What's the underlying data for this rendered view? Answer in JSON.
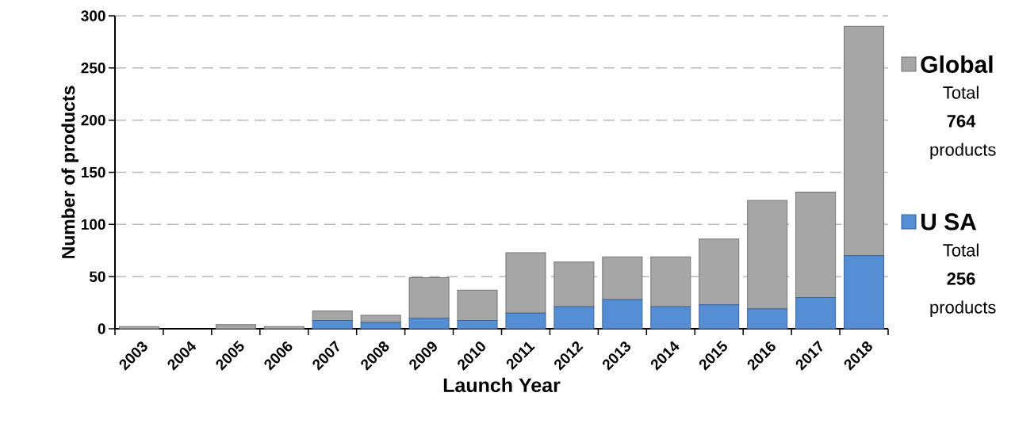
{
  "chart_data": {
    "type": "bar",
    "stacked": true,
    "xlabel": "Launch Year",
    "ylabel": "Number of products",
    "categories": [
      "2003",
      "2004",
      "2005",
      "2006",
      "2007",
      "2008",
      "2009",
      "2010",
      "2011",
      "2012",
      "2013",
      "2014",
      "2015",
      "2016",
      "2017",
      "2018"
    ],
    "series": [
      {
        "name": "U SA",
        "color": "#558ed5",
        "values": [
          0,
          0,
          0,
          0,
          8,
          6,
          10,
          8,
          15,
          21,
          28,
          21,
          23,
          19,
          30,
          70
        ]
      },
      {
        "name": "Global",
        "color": "#a6a6a6",
        "values": [
          2,
          0,
          4,
          2,
          9,
          7,
          39,
          29,
          58,
          43,
          41,
          48,
          63,
          104,
          101,
          220
        ]
      }
    ],
    "ylim": [
      0,
      300
    ],
    "yticks": [
      0,
      50,
      100,
      150,
      200,
      250,
      300
    ],
    "grid": "y",
    "legend": "right",
    "annotations": [
      "Total **764** products",
      "Total **256** products"
    ]
  }
}
